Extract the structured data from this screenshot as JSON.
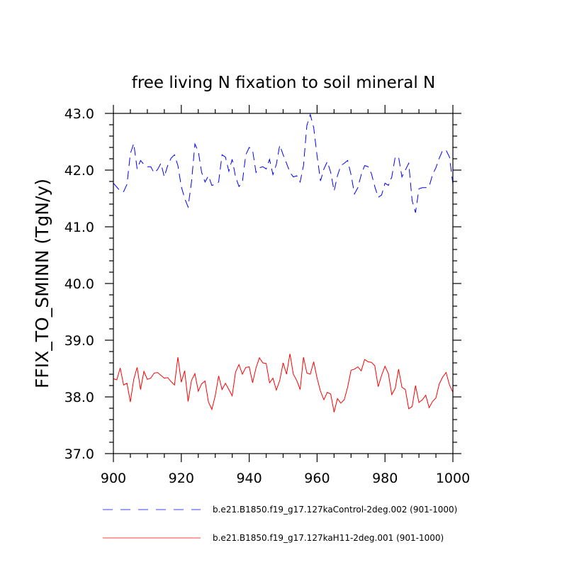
{
  "chart_data": {
    "type": "line",
    "title": "free living N fixation to soil mineral N",
    "xlabel": "",
    "ylabel": "FFIX_TO_SMINN  (TgN/y)",
    "xlim": [
      900,
      1000
    ],
    "ylim": [
      37.0,
      43.0
    ],
    "xticks": [
      "900",
      "920",
      "940",
      "960",
      "980",
      "1000"
    ],
    "yticks": [
      "37.0",
      "38.0",
      "39.0",
      "40.0",
      "41.0",
      "42.0",
      "43.0"
    ],
    "grid": false,
    "legend_position": "bottom",
    "x_start": 900,
    "series": [
      {
        "name": "b.e21.B1850.f19_g17.127kaControl-2deg.002 (901-1000)",
        "color": "#0000ff",
        "dash": "dashed",
        "values": [
          41.77,
          41.7,
          41.63,
          41.62,
          41.75,
          42.29,
          42.47,
          42.02,
          42.17,
          42.1,
          42.06,
          42.06,
          41.95,
          42.01,
          42.12,
          41.88,
          42.08,
          42.21,
          42.27,
          42.08,
          41.71,
          41.5,
          41.35,
          41.79,
          42.46,
          42.33,
          41.96,
          41.79,
          41.9,
          41.73,
          41.75,
          41.79,
          42.27,
          42.23,
          41.98,
          42.19,
          41.88,
          41.71,
          41.79,
          42.27,
          42.4,
          42.35,
          41.96,
          42.04,
          42.06,
          42.02,
          42.19,
          41.92,
          42.1,
          42.44,
          42.27,
          42.12,
          41.96,
          41.88,
          41.9,
          41.79,
          42.08,
          42.79,
          42.98,
          42.75,
          42.25,
          41.81,
          42.02,
          42.15,
          41.96,
          41.63,
          41.9,
          42.08,
          42.12,
          42.17,
          41.92,
          41.58,
          41.69,
          41.92,
          42.08,
          42.06,
          41.94,
          41.71,
          41.52,
          41.56,
          41.77,
          41.73,
          41.88,
          42.23,
          42.23,
          41.88,
          42.0,
          42.12,
          41.46,
          41.25,
          41.67,
          41.69,
          41.69,
          41.71,
          41.92,
          42.04,
          42.21,
          42.35,
          42.35,
          42.23,
          41.75
        ]
      },
      {
        "name": "b.e21.B1850.f19_g17.127kaH11-2deg.001 (901-1000)",
        "color": "#ff0000",
        "dash": "solid",
        "values": [
          38.32,
          38.3,
          38.51,
          38.21,
          38.24,
          37.91,
          38.31,
          38.52,
          38.13,
          38.45,
          38.31,
          38.33,
          38.42,
          38.43,
          38.38,
          38.33,
          38.34,
          38.27,
          38.21,
          38.7,
          38.26,
          38.46,
          37.92,
          38.29,
          38.41,
          38.1,
          38.23,
          38.28,
          37.91,
          37.78,
          38.02,
          38.37,
          38.13,
          38.24,
          38.13,
          38.02,
          38.44,
          38.57,
          38.4,
          38.52,
          38.53,
          38.25,
          38.51,
          38.69,
          38.6,
          38.59,
          38.25,
          38.33,
          38.12,
          38.29,
          38.6,
          38.4,
          38.76,
          38.4,
          38.29,
          38.13,
          38.7,
          38.42,
          38.4,
          38.62,
          38.33,
          38.1,
          37.95,
          38.08,
          38.05,
          37.73,
          37.97,
          37.89,
          37.95,
          38.17,
          38.47,
          38.49,
          38.53,
          38.46,
          38.66,
          38.62,
          38.61,
          38.55,
          38.18,
          38.38,
          38.54,
          38.41,
          38.04,
          38.15,
          38.49,
          38.17,
          38.13,
          37.79,
          37.83,
          38.2,
          37.9,
          37.95,
          38.03,
          37.81,
          37.92,
          37.98,
          38.23,
          38.35,
          38.43,
          38.21,
          38.08
        ]
      }
    ]
  }
}
